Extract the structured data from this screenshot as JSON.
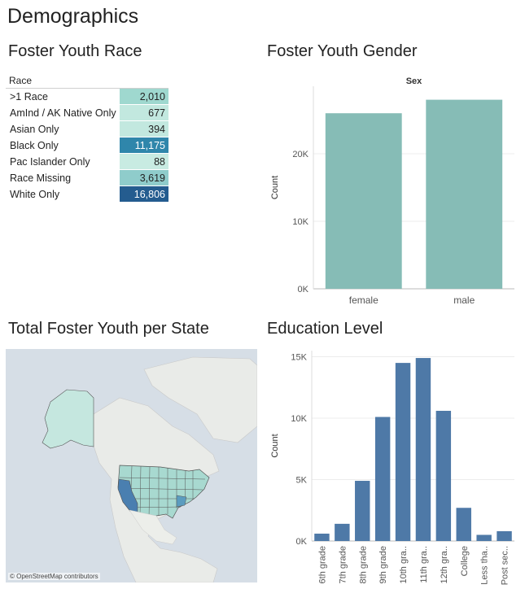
{
  "page_title": "Demographics",
  "sections": {
    "race": "Foster Youth Race",
    "gender": "Foster Youth Gender",
    "state": "Total Foster Youth per State",
    "education": "Education Level"
  },
  "race_table": {
    "header": "Race",
    "rows": [
      {
        "label": ">1 Race",
        "value": "2,010",
        "color": "#9fd8cf",
        "text_color": "#222"
      },
      {
        "label": "AmInd / AK Native Only",
        "value": "677",
        "color": "#c2e8df",
        "text_color": "#222"
      },
      {
        "label": "Asian Only",
        "value": "394",
        "color": "#c2e8df",
        "text_color": "#222"
      },
      {
        "label": "Black Only",
        "value": "11,175",
        "color": "#2f86ab",
        "text_color": "#ffffff"
      },
      {
        "label": "Pac Islander Only",
        "value": "88",
        "color": "#c8ebe2",
        "text_color": "#222"
      },
      {
        "label": "Race Missing",
        "value": "3,619",
        "color": "#8fcccb",
        "text_color": "#222"
      },
      {
        "label": "White Only",
        "value": "16,806",
        "color": "#245c8f",
        "text_color": "#ffffff"
      }
    ]
  },
  "map": {
    "attribution": "© OpenStreetMap contributors",
    "water_color": "#d6dee6",
    "land_color": "#e9ebe8",
    "state_color": "#a8d9d0",
    "highlight_color": "#4a7fb0"
  },
  "chart_data": [
    {
      "type": "bar",
      "title": "Sex",
      "ylabel": "Count",
      "categories": [
        "female",
        "male"
      ],
      "values": [
        26000,
        28000
      ],
      "ylim": [
        0,
        30000
      ],
      "yticks": [
        0,
        10000,
        20000
      ],
      "ytick_labels": [
        "0K",
        "10K",
        "20K"
      ],
      "color": "#86bcb6",
      "grid": true
    },
    {
      "type": "bar",
      "ylabel": "Count",
      "categories": [
        "6th grade",
        "7th grade",
        "8th grade",
        "9th grade",
        "10th gra..",
        "11th gra..",
        "12th gra..",
        "College",
        "Less tha..",
        "Post sec.."
      ],
      "values": [
        600,
        1400,
        4900,
        10100,
        14500,
        14900,
        10600,
        2700,
        500,
        800
      ],
      "ylim": [
        0,
        15500
      ],
      "yticks": [
        0,
        5000,
        10000,
        15000
      ],
      "ytick_labels": [
        "0K",
        "5K",
        "10K",
        "15K"
      ],
      "color": "#4e79a7",
      "grid": true
    }
  ]
}
